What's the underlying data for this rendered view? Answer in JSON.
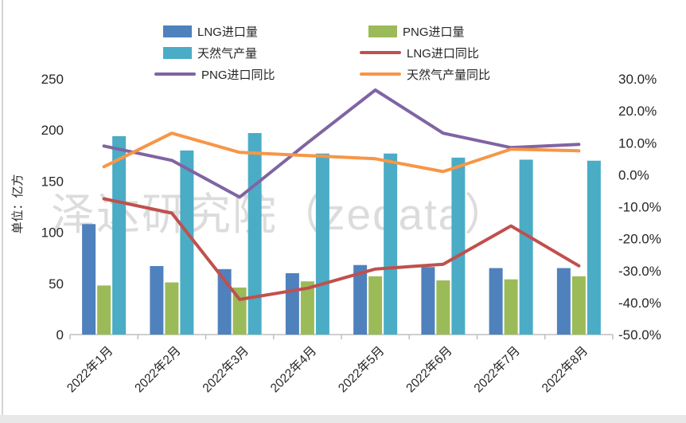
{
  "watermark": "泽达研究院（zedata）",
  "chart_data": {
    "type": "combo",
    "title": "",
    "categories": [
      "2022年1月",
      "2022年2月",
      "2022年3月",
      "2022年4月",
      "2022年5月",
      "2022年6月",
      "2022年7月",
      "2022年8月"
    ],
    "series": [
      {
        "id": "lng-imports",
        "name": "LNG进口量",
        "type": "bar",
        "axis": "left",
        "color": "#4F81BD",
        "values": [
          108,
          67,
          64,
          60,
          68,
          66,
          65,
          65
        ]
      },
      {
        "id": "png-imports",
        "name": "PNG进口量",
        "type": "bar",
        "axis": "left",
        "color": "#9BBB59",
        "values": [
          48,
          51,
          46,
          52,
          57,
          53,
          54,
          57
        ]
      },
      {
        "id": "gas-production",
        "name": "天然气产量",
        "type": "bar",
        "axis": "left",
        "color": "#4BACC6",
        "values": [
          194,
          180,
          197,
          177,
          177,
          173,
          171,
          170
        ]
      },
      {
        "id": "lng-imports-yoy",
        "name": "LNG进口同比",
        "type": "line",
        "axis": "right",
        "color": "#C0504D",
        "values": [
          -7.5,
          -12,
          -39,
          -35.5,
          -29.5,
          -28,
          -16,
          -28.5
        ]
      },
      {
        "id": "png-imports-yoy",
        "name": "PNG进口同比",
        "type": "line",
        "axis": "right",
        "color": "#8064A2",
        "values": [
          9,
          4.5,
          -7,
          10,
          26.5,
          13,
          8.5,
          9.5
        ]
      },
      {
        "id": "gas-production-yoy",
        "name": "天然气产量同比",
        "type": "line",
        "axis": "right",
        "color": "#F79646",
        "values": [
          2.5,
          13,
          7,
          6,
          5,
          1,
          8,
          7.5
        ]
      }
    ],
    "left_axis": {
      "title": "单位：亿方",
      "min": 0,
      "max": 250,
      "tick_labels": [
        "0",
        "50",
        "100",
        "150",
        "200",
        "250"
      ]
    },
    "right_axis": {
      "min": -50,
      "max": 30,
      "tick_labels": [
        "30.0%",
        "20.0%",
        "10.0%",
        "0.0%",
        "-10.0%",
        "-20.0%",
        "-30.0%",
        "-40.0%",
        "-50.0%"
      ]
    },
    "legend_position": "top",
    "gridlines": false,
    "axis_color": "#BFBFBF",
    "text_color": "#262626"
  }
}
